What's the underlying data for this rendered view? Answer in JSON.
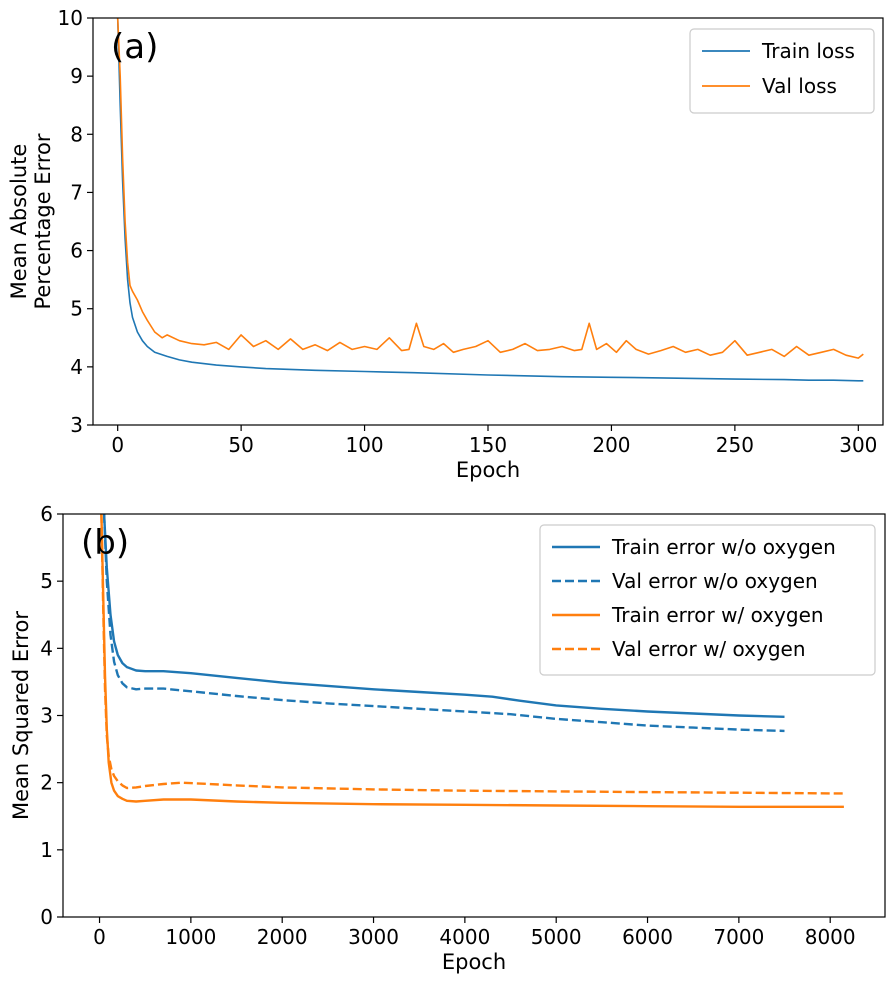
{
  "chart_data": [
    {
      "type": "line",
      "panel_label": "(a)",
      "xlabel": "Epoch",
      "ylabel_lines": [
        "Mean Absolute",
        "Percentage Error"
      ],
      "xlim": [
        -10,
        310
      ],
      "ylim": [
        3,
        10
      ],
      "xticks": [
        0,
        50,
        100,
        150,
        200,
        250,
        300
      ],
      "yticks": [
        3,
        4,
        5,
        6,
        7,
        8,
        9,
        10
      ],
      "xtick_labels": [
        "0",
        "50",
        "100",
        "150",
        "200",
        "250",
        "300"
      ],
      "ytick_labels": [
        "3",
        "4",
        "5",
        "6",
        "7",
        "8",
        "9",
        "10"
      ],
      "legend_position": "top-right",
      "series": [
        {
          "name": "Train loss",
          "color": "#1f77b4",
          "dash": "solid",
          "x": [
            0,
            1,
            2,
            3,
            4,
            5,
            6,
            8,
            10,
            12,
            15,
            20,
            25,
            30,
            40,
            50,
            60,
            80,
            100,
            120,
            150,
            180,
            200,
            220,
            250,
            270,
            280,
            290,
            300,
            302
          ],
          "y": [
            10.0,
            8.5,
            7.2,
            6.2,
            5.5,
            5.1,
            4.85,
            4.6,
            4.45,
            4.35,
            4.25,
            4.18,
            4.12,
            4.08,
            4.03,
            4.0,
            3.97,
            3.94,
            3.92,
            3.9,
            3.86,
            3.83,
            3.82,
            3.81,
            3.79,
            3.78,
            3.77,
            3.77,
            3.76,
            3.76
          ]
        },
        {
          "name": "Val loss",
          "color": "#ff7f0e",
          "dash": "solid",
          "x": [
            0,
            1,
            2,
            3,
            4,
            5,
            6,
            8,
            10,
            12,
            15,
            18,
            20,
            25,
            30,
            35,
            40,
            45,
            50,
            55,
            60,
            65,
            70,
            75,
            80,
            85,
            90,
            95,
            100,
            105,
            110,
            115,
            118,
            121,
            124,
            128,
            132,
            136,
            140,
            145,
            150,
            155,
            160,
            165,
            170,
            175,
            180,
            185,
            188,
            191,
            194,
            198,
            202,
            206,
            210,
            215,
            220,
            225,
            230,
            235,
            240,
            245,
            250,
            255,
            260,
            265,
            270,
            275,
            280,
            285,
            290,
            295,
            300,
            302
          ],
          "y": [
            10.0,
            9.0,
            7.6,
            6.5,
            5.8,
            5.4,
            5.3,
            5.15,
            4.95,
            4.8,
            4.6,
            4.5,
            4.55,
            4.45,
            4.4,
            4.38,
            4.42,
            4.3,
            4.55,
            4.35,
            4.45,
            4.3,
            4.48,
            4.3,
            4.38,
            4.28,
            4.42,
            4.3,
            4.35,
            4.3,
            4.5,
            4.28,
            4.3,
            4.75,
            4.35,
            4.3,
            4.4,
            4.25,
            4.3,
            4.35,
            4.45,
            4.25,
            4.3,
            4.4,
            4.28,
            4.3,
            4.35,
            4.28,
            4.3,
            4.75,
            4.3,
            4.4,
            4.25,
            4.45,
            4.3,
            4.22,
            4.28,
            4.35,
            4.25,
            4.3,
            4.2,
            4.25,
            4.45,
            4.2,
            4.25,
            4.3,
            4.18,
            4.35,
            4.2,
            4.25,
            4.3,
            4.2,
            4.15,
            4.22
          ]
        }
      ]
    },
    {
      "type": "line",
      "panel_label": "(b)",
      "xlabel": "Epoch",
      "ylabel_lines": [
        "Mean Squared Error"
      ],
      "xlim": [
        -400,
        8600
      ],
      "ylim": [
        0,
        6
      ],
      "xticks": [
        0,
        1000,
        2000,
        3000,
        4000,
        5000,
        6000,
        7000,
        8000
      ],
      "yticks": [
        0,
        1,
        2,
        3,
        4,
        5,
        6
      ],
      "xtick_labels": [
        "0",
        "1000",
        "2000",
        "3000",
        "4000",
        "5000",
        "6000",
        "7000",
        "8000"
      ],
      "ytick_labels": [
        "0",
        "1",
        "2",
        "3",
        "4",
        "5",
        "6"
      ],
      "legend_position": "top-right",
      "series": [
        {
          "name": "Train error w/o oxygen",
          "color": "#1f77b4",
          "dash": "solid",
          "x": [
            50,
            80,
            120,
            160,
            200,
            250,
            300,
            400,
            500,
            700,
            1000,
            1500,
            2000,
            2500,
            3000,
            3500,
            4000,
            4300,
            4600,
            5000,
            5500,
            6000,
            6500,
            7000,
            7500
          ],
          "y": [
            6.0,
            5.2,
            4.5,
            4.1,
            3.9,
            3.78,
            3.72,
            3.67,
            3.66,
            3.66,
            3.63,
            3.56,
            3.49,
            3.44,
            3.39,
            3.35,
            3.31,
            3.28,
            3.22,
            3.15,
            3.1,
            3.06,
            3.03,
            3.0,
            2.98
          ]
        },
        {
          "name": "Val error w/o oxygen",
          "color": "#1f77b4",
          "dash": "dashed",
          "x": [
            50,
            80,
            120,
            160,
            200,
            250,
            300,
            400,
            500,
            700,
            1000,
            1500,
            2000,
            2500,
            3000,
            3500,
            4000,
            4500,
            5000,
            5500,
            6000,
            6500,
            7000,
            7500
          ],
          "y": [
            6.0,
            5.0,
            4.2,
            3.8,
            3.6,
            3.48,
            3.42,
            3.39,
            3.4,
            3.4,
            3.36,
            3.29,
            3.23,
            3.18,
            3.14,
            3.1,
            3.06,
            3.02,
            2.95,
            2.9,
            2.85,
            2.82,
            2.79,
            2.77
          ]
        },
        {
          "name": "Train error w/ oxygen",
          "color": "#ff7f0e",
          "dash": "solid",
          "x": [
            20,
            40,
            60,
            80,
            100,
            130,
            160,
            200,
            250,
            300,
            400,
            500,
            700,
            1000,
            1500,
            2000,
            3000,
            4000,
            5000,
            6000,
            7000,
            8000,
            8150
          ],
          "y": [
            6.0,
            4.8,
            3.6,
            2.8,
            2.3,
            2.0,
            1.88,
            1.8,
            1.76,
            1.73,
            1.72,
            1.73,
            1.75,
            1.75,
            1.72,
            1.7,
            1.68,
            1.67,
            1.66,
            1.65,
            1.64,
            1.64,
            1.64
          ]
        },
        {
          "name": "Val error w/ oxygen",
          "color": "#ff7f0e",
          "dash": "dashed",
          "x": [
            20,
            40,
            60,
            80,
            100,
            130,
            160,
            200,
            250,
            300,
            400,
            500,
            700,
            900,
            1200,
            1500,
            2000,
            3000,
            4000,
            5000,
            6000,
            7000,
            8000,
            8150
          ],
          "y": [
            6.0,
            4.6,
            3.4,
            2.7,
            2.4,
            2.2,
            2.1,
            2.02,
            1.96,
            1.92,
            1.93,
            1.95,
            1.98,
            2.0,
            1.98,
            1.96,
            1.93,
            1.9,
            1.88,
            1.87,
            1.86,
            1.85,
            1.84,
            1.84
          ]
        }
      ]
    }
  ]
}
